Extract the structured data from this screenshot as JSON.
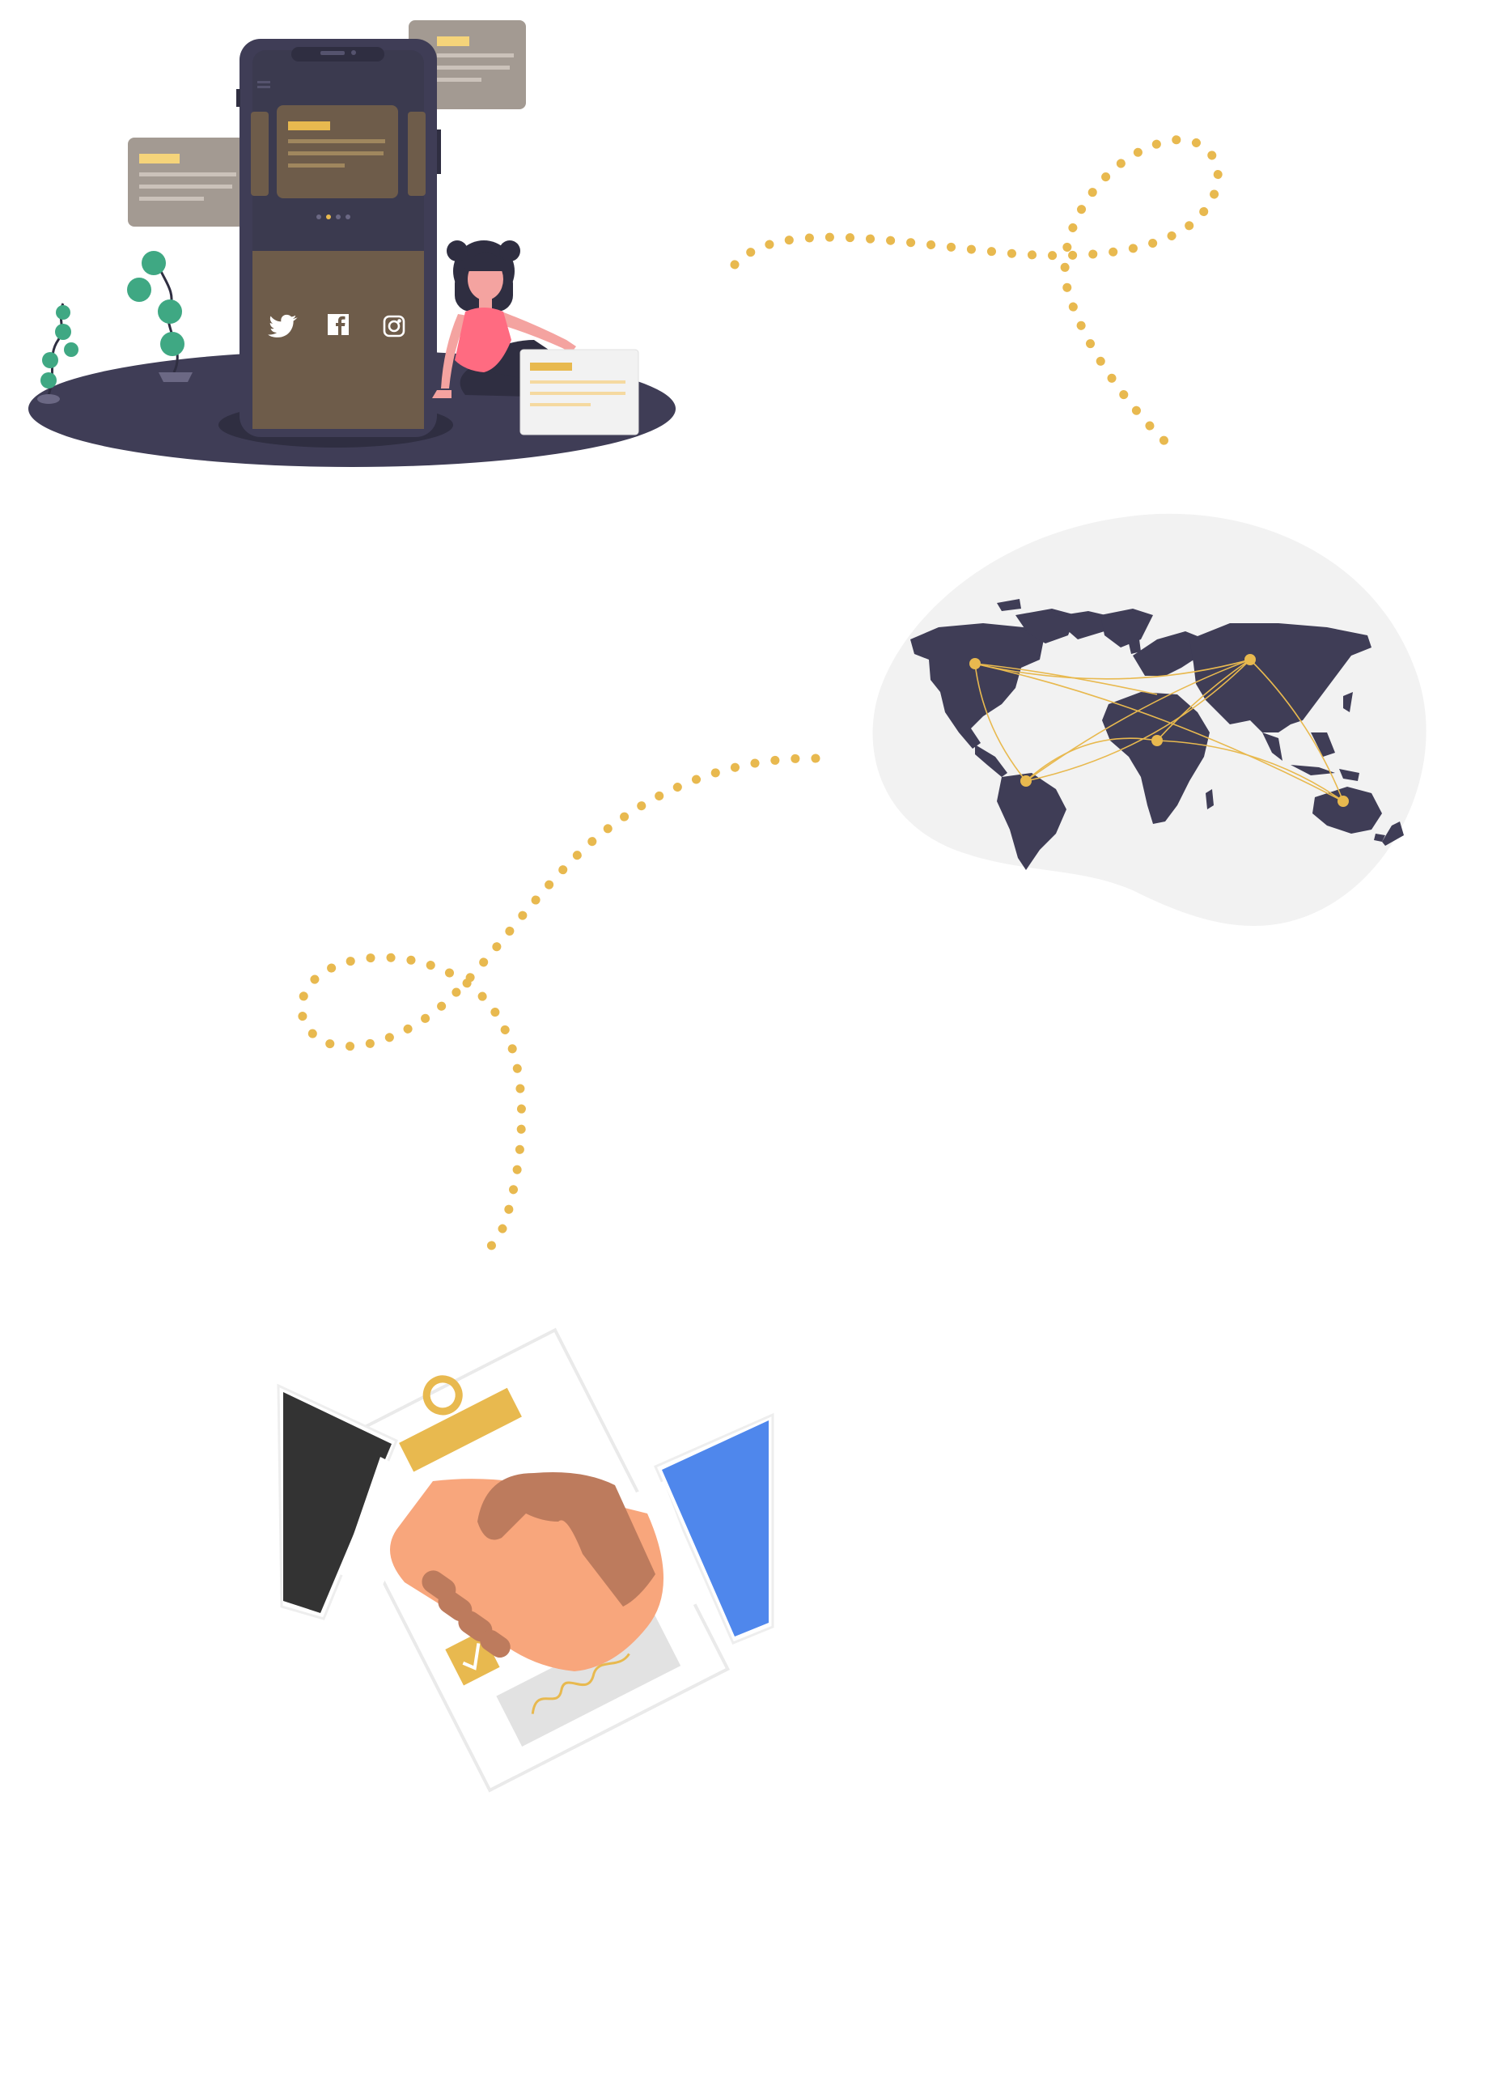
{
  "colors": {
    "accent": "#e8b94f",
    "dark": "#3f3d56",
    "phoneScreenTop": "#3b3a4f",
    "phoneScreenBottom": "#6e5c4a",
    "card": "#a39a92",
    "leaf": "#3fa883",
    "skin": "#f4a3a0",
    "shirt": "#ff6b81",
    "blob": "#f2f2f2",
    "sleeveDark": "#333333",
    "sleeveBlue": "#4f87ec",
    "handLight": "#f8a67c",
    "handDark": "#bd7b5d",
    "paper": "#ffffff",
    "signatureBox": "#e2e2e2"
  },
  "icons": {
    "social": [
      "twitter-icon",
      "facebook-icon",
      "instagram-icon"
    ]
  }
}
